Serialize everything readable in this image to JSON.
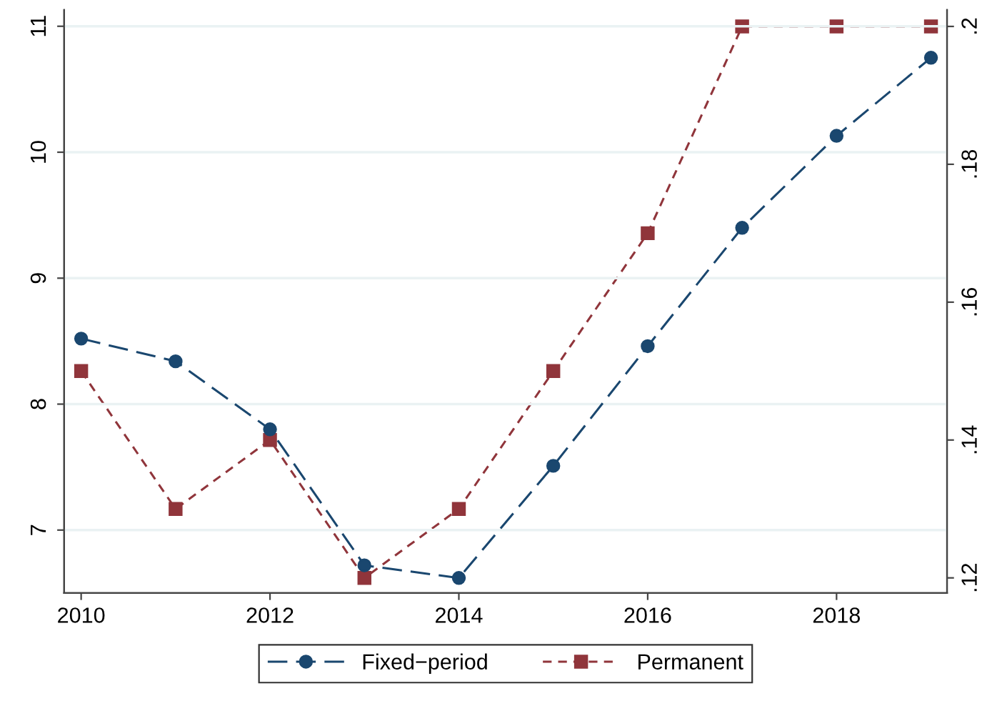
{
  "chart_data": {
    "type": "line",
    "x": [
      2010,
      2011,
      2012,
      2013,
      2014,
      2015,
      2016,
      2017,
      2018,
      2019
    ],
    "series": [
      {
        "name": "Fixed−period",
        "color": "#1a476f",
        "marker": "circle",
        "line_style": "dashed",
        "values": [
          8.52,
          8.34,
          7.8,
          6.72,
          6.62,
          7.51,
          8.46,
          9.4,
          10.13,
          10.75
        ]
      },
      {
        "name": "Permanent",
        "color": "#90353b",
        "marker": "square",
        "line_style": "dashed",
        "axis": "y2",
        "values": [
          0.15,
          0.13,
          0.14,
          0.12,
          0.13,
          0.15,
          0.17,
          0.2,
          0.2,
          0.2
        ]
      }
    ],
    "xlim": [
      2009.82,
      2019.17
    ],
    "xticks": [
      2010,
      2012,
      2014,
      2016,
      2018
    ],
    "ylim": [
      6.5,
      11.13
    ],
    "yticks": [
      7,
      8,
      9,
      10,
      11
    ],
    "y2lim": [
      0.1178,
      0.2024
    ],
    "y2ticks": [
      {
        "value": 0.12,
        "label": ".12"
      },
      {
        "value": 0.14,
        "label": ".14"
      },
      {
        "value": 0.16,
        "label": ".16"
      },
      {
        "value": 0.18,
        "label": ".18"
      },
      {
        "value": 0.2,
        "label": ".2"
      }
    ],
    "grid": "y",
    "legend": "bottom"
  }
}
